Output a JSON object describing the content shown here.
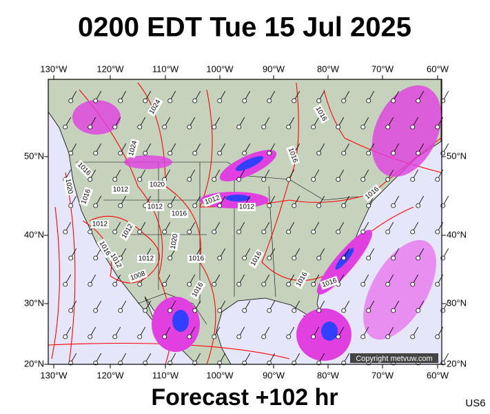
{
  "title": "0200 EDT Tue 15 Jul 2025",
  "footer": "Forecast +102 hr",
  "region": "US6",
  "copyright": "Copyright metvuw.com",
  "axes": {
    "lon_labels": [
      "130°W",
      "120°W",
      "110°W",
      "100°W",
      "90°W",
      "80°W",
      "70°W",
      "60°W"
    ],
    "lat_labels": [
      "50°N",
      "40°N",
      "30°N",
      "20°N"
    ]
  },
  "isobars": [
    "1024",
    "1016",
    "1024",
    "1016",
    "1016",
    "1020",
    "1016",
    "1012",
    "1020",
    "1012",
    "1016",
    "1012",
    "1012",
    "1016",
    "1012",
    "1012",
    "1020",
    "1016",
    "1012",
    "1012",
    "1008",
    "1016",
    "1016",
    "1016",
    "1016",
    "1016"
  ]
}
